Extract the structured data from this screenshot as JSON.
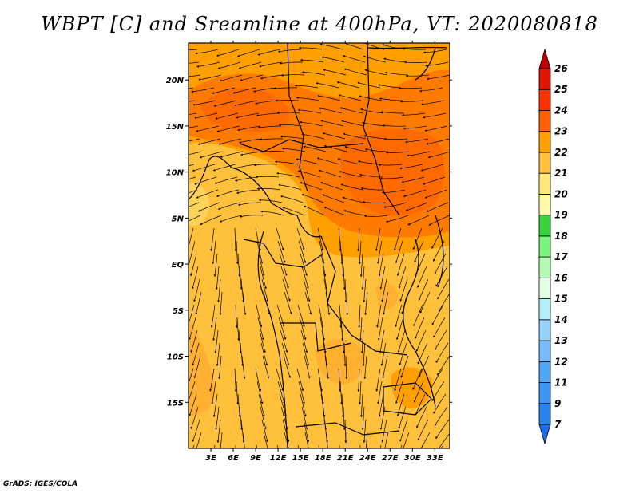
{
  "title": "WBPT [C] and Sreamline at 400hPa, VT: 2020080818",
  "credit": "GrADS: IGES/COLA",
  "map": {
    "lon_range": [
      0,
      35
    ],
    "lat_range": [
      -20,
      24
    ],
    "lon_ticks": [
      "3E",
      "6E",
      "9E",
      "12E",
      "15E",
      "18E",
      "21E",
      "24E",
      "27E",
      "30E",
      "33E"
    ],
    "lat_ticks": [
      "20N",
      "15N",
      "10N",
      "5N",
      "EQ",
      "5S",
      "10S",
      "15S"
    ]
  },
  "colorbar": {
    "labels": [
      "7",
      "9",
      "11",
      "12",
      "13",
      "14",
      "15",
      "16",
      "17",
      "18",
      "19",
      "20",
      "21",
      "22",
      "23",
      "24",
      "25",
      "26"
    ],
    "colors": [
      "#1e6eeb",
      "#2882f0",
      "#3c96f5",
      "#50a5f5",
      "#78b9fa",
      "#96d2fa",
      "#b4f0fa",
      "#e1ffe1",
      "#b4fab4",
      "#78f578",
      "#37d23c",
      "#fffaaa",
      "#ffe878",
      "#ffc03c",
      "#ffa000",
      "#ff6000",
      "#ff3200",
      "#e11400",
      "#c00000"
    ]
  }
}
